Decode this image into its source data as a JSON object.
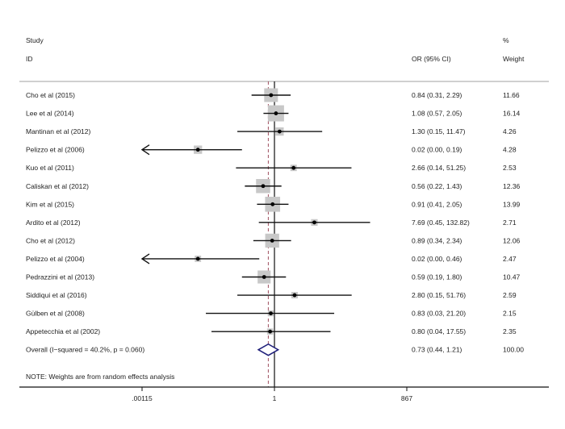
{
  "chart_data": {
    "type": "forest",
    "scale": "log",
    "xlim": [
      0.00115,
      867
    ],
    "xticks": [
      ".00115",
      "1",
      "867"
    ],
    "xtick_values": [
      0.00115,
      1,
      867
    ],
    "null_line": 1,
    "headers": {
      "study_top": "Study",
      "study": "ID",
      "or": "OR (95% CI)",
      "weight_top": "%",
      "weight": "Weight"
    },
    "studies": [
      {
        "id": "Cho et al (2015)",
        "or": 0.84,
        "lo": 0.31,
        "hi": 2.29,
        "label": "0.84 (0.31, 2.29)",
        "weight": "11.66"
      },
      {
        "id": "Lee et al (2014)",
        "or": 1.08,
        "lo": 0.57,
        "hi": 2.05,
        "label": "1.08 (0.57, 2.05)",
        "weight": "16.14"
      },
      {
        "id": "Mantinan et al (2012)",
        "or": 1.3,
        "lo": 0.15,
        "hi": 11.47,
        "label": "1.30 (0.15, 11.47)",
        "weight": "4.26"
      },
      {
        "id": "Pelizzo et al (2006)",
        "or": 0.02,
        "lo": 0.0,
        "hi": 0.19,
        "label": "0.02 (0.00, 0.19)",
        "weight": "4.28"
      },
      {
        "id": "Kuo et al (2011)",
        "or": 2.66,
        "lo": 0.14,
        "hi": 51.25,
        "label": "2.66 (0.14, 51.25)",
        "weight": "2.53"
      },
      {
        "id": "Caliskan et al (2012)",
        "or": 0.56,
        "lo": 0.22,
        "hi": 1.43,
        "label": "0.56 (0.22, 1.43)",
        "weight": "12.36"
      },
      {
        "id": "Kim et al (2015)",
        "or": 0.91,
        "lo": 0.41,
        "hi": 2.05,
        "label": "0.91 (0.41, 2.05)",
        "weight": "13.99"
      },
      {
        "id": "Ardito et al (2012)",
        "or": 7.69,
        "lo": 0.45,
        "hi": 132.82,
        "label": "7.69 (0.45, 132.82)",
        "weight": "2.71"
      },
      {
        "id": "Cho et al (2012)",
        "or": 0.89,
        "lo": 0.34,
        "hi": 2.34,
        "label": "0.89 (0.34, 2.34)",
        "weight": "12.06"
      },
      {
        "id": "Pelizzo et al (2004)",
        "or": 0.02,
        "lo": 0.0,
        "hi": 0.46,
        "label": "0.02 (0.00, 0.46)",
        "weight": "2.47"
      },
      {
        "id": "Pedrazzini et al (2013)",
        "or": 0.59,
        "lo": 0.19,
        "hi": 1.8,
        "label": "0.59 (0.19, 1.80)",
        "weight": "10.47"
      },
      {
        "id": "Siddiqui et al (2016)",
        "or": 2.8,
        "lo": 0.15,
        "hi": 51.76,
        "label": "2.80 (0.15, 51.76)",
        "weight": "2.59"
      },
      {
        "id": "Gülben et al (2008)",
        "or": 0.83,
        "lo": 0.03,
        "hi": 21.2,
        "label": "0.83 (0.03, 21.20)",
        "weight": "2.15"
      },
      {
        "id": "Appetecchia et al (2002)",
        "or": 0.8,
        "lo": 0.04,
        "hi": 17.55,
        "label": "0.80 (0.04, 17.55)",
        "weight": "2.35"
      }
    ],
    "overall": {
      "id": "Overall  (I−squared = 40.2%, p = 0.060)",
      "or": 0.73,
      "lo": 0.44,
      "hi": 1.21,
      "label": "0.73 (0.44, 1.21)",
      "weight": "100.00"
    },
    "note": "NOTE: Weights are from random effects analysis",
    "colors": {
      "box": "#c8c8c8",
      "line": "#111111",
      "diamond": "#1f1f7a",
      "overall_line": "#a05060"
    }
  }
}
